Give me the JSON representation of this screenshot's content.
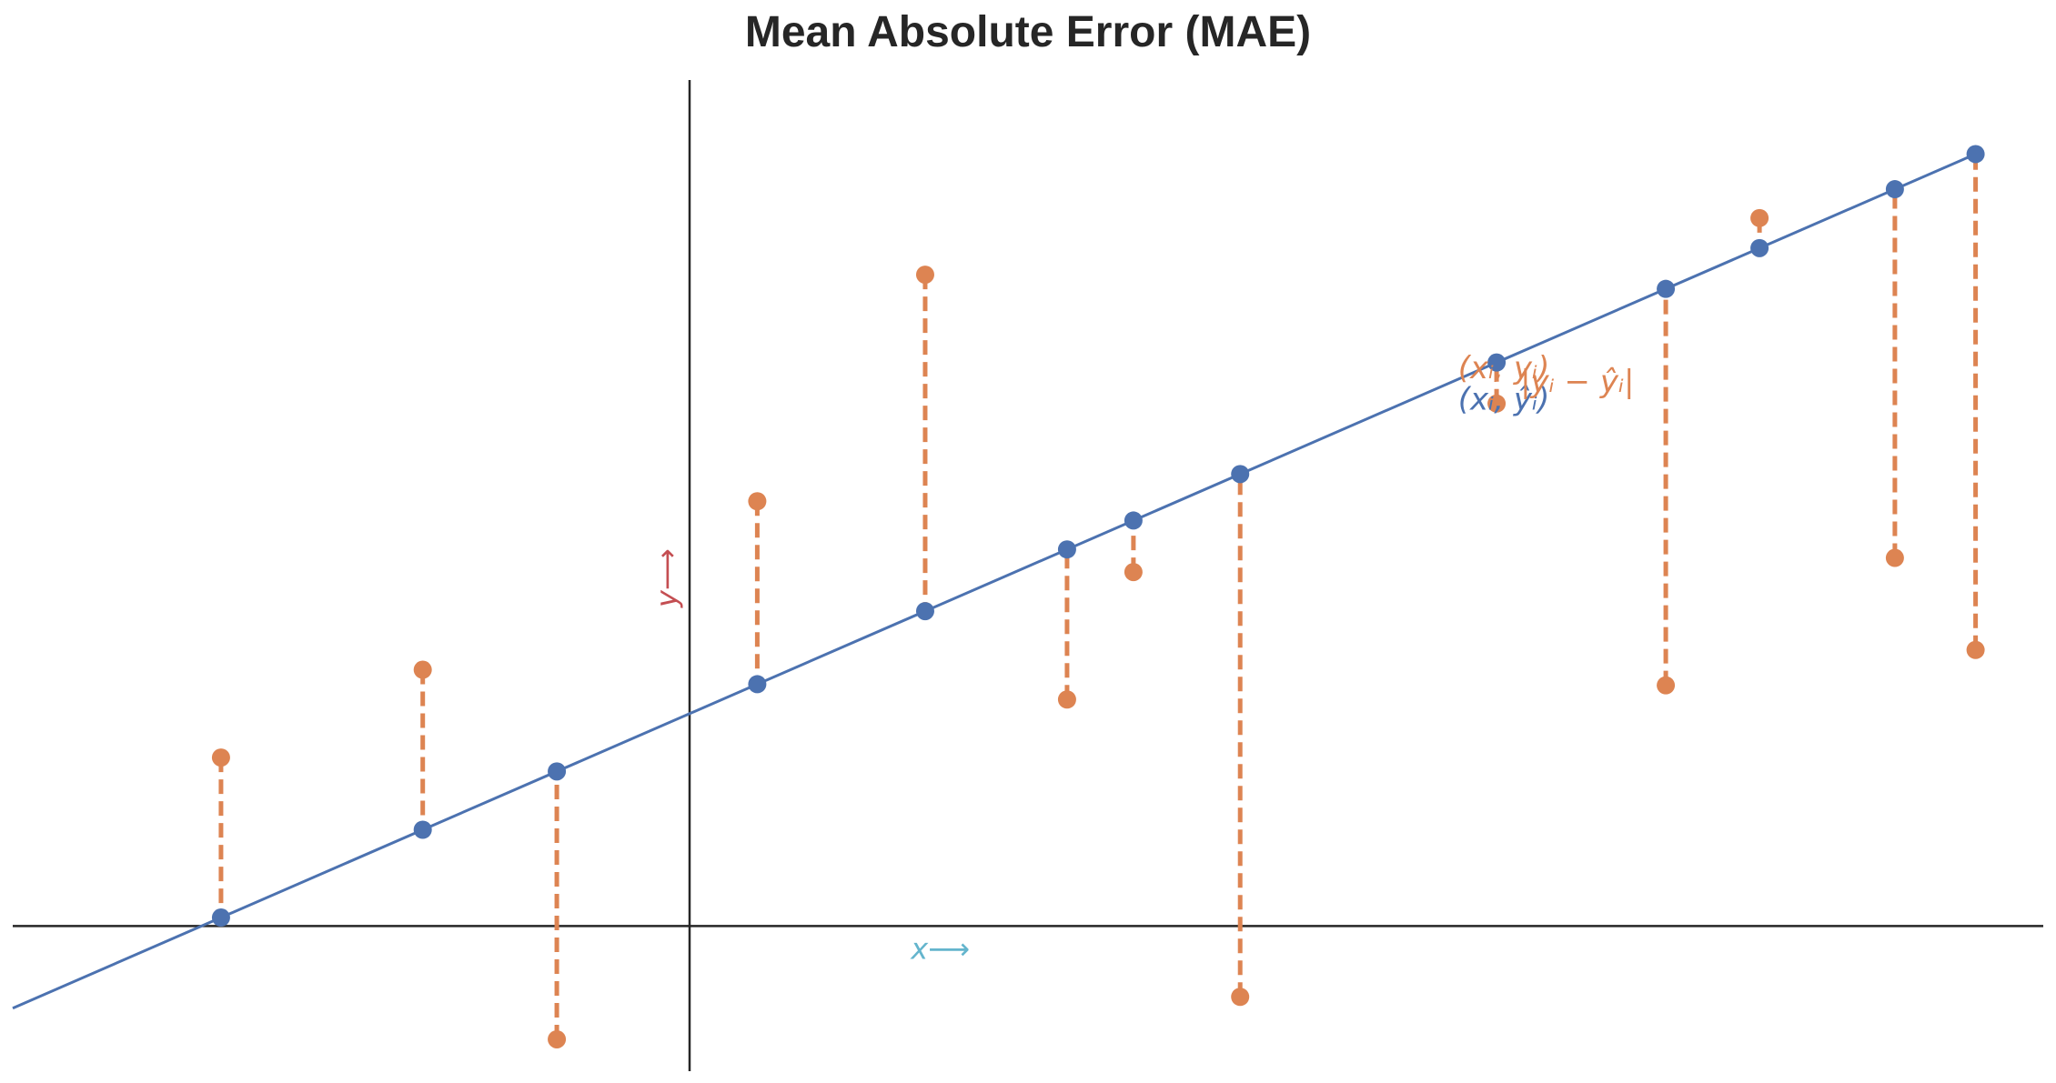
{
  "chart_data": {
    "type": "scatter",
    "title": "Mean Absolute Error (MAE)",
    "xlabel": "x⟶",
    "ylabel": "y⟶",
    "xlim": [
      -0.52,
      1.04
    ],
    "ylim": [
      -0.1025,
      0.5975
    ],
    "grid": false,
    "regression_line": {
      "slope": 0.4,
      "intercept": 0.15
    },
    "points": [
      {
        "x": -0.36,
        "y": 0.119
      },
      {
        "x": -0.205,
        "y": 0.181
      },
      {
        "x": -0.102,
        "y": -0.08
      },
      {
        "x": 0.052,
        "y": 0.3
      },
      {
        "x": 0.181,
        "y": 0.46
      },
      {
        "x": 0.29,
        "y": 0.16
      },
      {
        "x": 0.341,
        "y": 0.25
      },
      {
        "x": 0.423,
        "y": -0.05
      },
      {
        "x": 0.62,
        "y": 0.369
      },
      {
        "x": 0.75,
        "y": 0.17
      },
      {
        "x": 0.822,
        "y": 0.5
      },
      {
        "x": 0.926,
        "y": 0.26
      },
      {
        "x": 0.988,
        "y": 0.195
      }
    ],
    "colors": {
      "observed": "#dd8452",
      "predicted": "#4c72b0",
      "axes": "#262626",
      "xlabel": "#64b5cd",
      "ylabel": "#c44e52"
    },
    "annotations": {
      "observed_label": "(xᵢ, yᵢ)",
      "predicted_label": "(xᵢ, ŷᵢ)",
      "error_label": "|yᵢ − ŷᵢ|",
      "annotated_index": 8
    }
  }
}
